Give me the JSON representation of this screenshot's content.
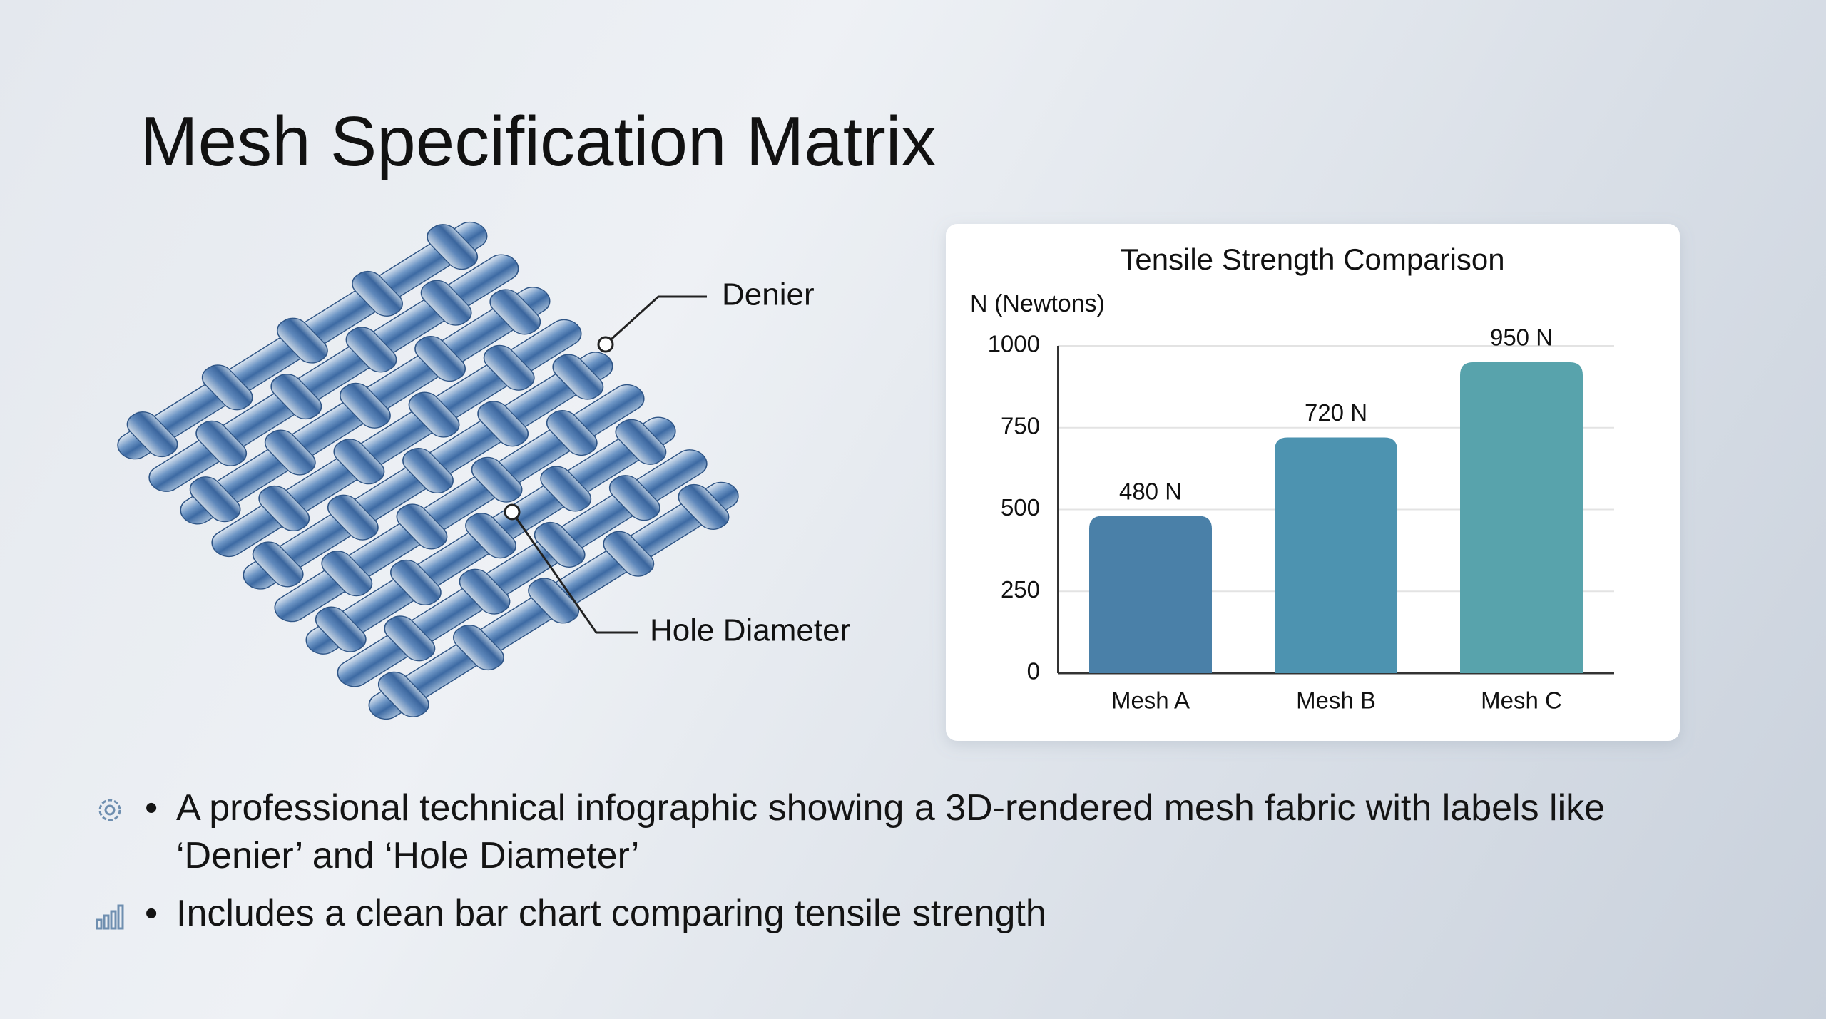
{
  "title": "Mesh Specification Matrix",
  "callouts": [
    "Denier",
    "Hole Diameter"
  ],
  "bullets": [
    "A professional technical infographic showing a 3D-rendered mesh fabric with labels like ‘Denier’ and ‘Hole Diameter’",
    "Includes a clean bar chart comparing tensile strength"
  ],
  "chart_data": {
    "type": "bar",
    "title": "Tensile Strength Comparison",
    "y_label": "N (Newtons)",
    "categories": [
      "Mesh A",
      "Mesh B",
      "Mesh C"
    ],
    "values": [
      480,
      720,
      950
    ],
    "value_labels": [
      "480 N",
      "720 N",
      "950 N"
    ],
    "colors": [
      "#4a80a8",
      "#4d93b0",
      "#58a3ac"
    ],
    "ylim": [
      0,
      1000
    ],
    "yticks": [
      0,
      250,
      500,
      750,
      1000
    ],
    "grid": true
  }
}
